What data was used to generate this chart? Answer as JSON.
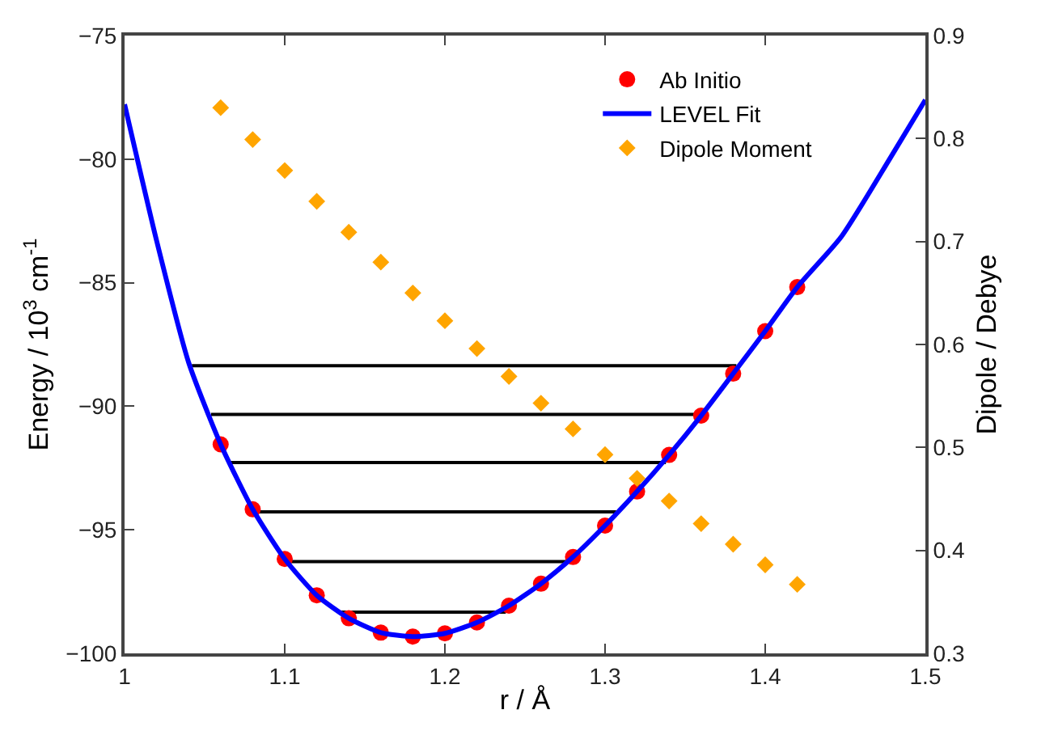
{
  "chart_data": {
    "type": "scatter",
    "xlabel": "r / Å",
    "ylabel": "Energy / 10$^{3}$ cm$^{-1}$",
    "y2label": "Dipole / Debye",
    "xlim": [
      1,
      1.5
    ],
    "xticks": [
      1,
      1.1,
      1.2,
      1.3,
      1.4,
      1.5
    ],
    "ylim": [
      -100,
      -75
    ],
    "yticks": [
      -100,
      -95,
      -90,
      -85,
      -80,
      -75
    ],
    "y2lim": [
      0.3,
      0.9
    ],
    "y2ticks": [
      0.3,
      0.4,
      0.5,
      0.6,
      0.7,
      0.8,
      0.9
    ],
    "legend": "top right",
    "series": [
      {
        "type": "line",
        "color": "#000000",
        "x": [
          1.042,
          1.382
        ],
        "values": [
          -88.36,
          -88.36
        ]
      },
      {
        "type": "line",
        "color": "#000000",
        "x": [
          1.054,
          1.358
        ],
        "values": [
          -90.33,
          -90.33
        ]
      },
      {
        "type": "line",
        "color": "#000000",
        "x": [
          1.065,
          1.338
        ],
        "values": [
          -92.28,
          -92.28
        ]
      },
      {
        "type": "line",
        "color": "#000000",
        "x": [
          1.083,
          1.307
        ],
        "values": [
          -94.27,
          -94.27
        ]
      },
      {
        "type": "line",
        "color": "#000000",
        "x": [
          1.102,
          1.276
        ],
        "values": [
          -96.29,
          -96.29
        ]
      },
      {
        "type": "line",
        "color": "#000000",
        "x": [
          1.134,
          1.238
        ],
        "values": [
          -98.33,
          -98.33
        ]
      },
      {
        "name": "Ab Initio",
        "color": "#ff0000",
        "marker": "circle",
        "x": [
          1.06,
          1.08,
          1.1,
          1.12,
          1.14,
          1.16,
          1.18,
          1.2,
          1.22,
          1.24,
          1.26,
          1.28,
          1.3,
          1.32,
          1.34,
          1.36,
          1.38,
          1.4,
          1.42
        ],
        "values": [
          -91.54,
          -94.17,
          -96.18,
          -97.65,
          -98.58,
          -99.16,
          -99.32,
          -99.19,
          -98.75,
          -98.07,
          -97.18,
          -96.1,
          -94.83,
          -93.45,
          -91.97,
          -90.38,
          -88.68,
          -86.96,
          -85.18
        ]
      },
      {
        "type": "line",
        "name": "LEVEL Fit",
        "color": "#0000ff",
        "marker": "none",
        "x": [
          1.0,
          1.02,
          1.04,
          1.06,
          1.08,
          1.1,
          1.12,
          1.14,
          1.16,
          1.18,
          1.2,
          1.22,
          1.24,
          1.26,
          1.28,
          1.3,
          1.32,
          1.34,
          1.36,
          1.38,
          1.4,
          1.42,
          1.4475,
          1.478,
          1.5
        ],
        "values": [
          -77.78,
          -83.3,
          -88.23,
          -91.54,
          -94.17,
          -96.18,
          -97.65,
          -98.58,
          -99.16,
          -99.32,
          -99.19,
          -98.75,
          -98.07,
          -97.18,
          -96.1,
          -94.83,
          -93.45,
          -91.97,
          -90.38,
          -88.68,
          -86.96,
          -85.18,
          -83.14,
          -79.96,
          -77.6
        ]
      },
      {
        "type": "scatter",
        "name": "Dipole Moment",
        "color": "#ffa500",
        "marker": "diamond",
        "axis": "y2",
        "x": [
          1.06,
          1.08,
          1.1,
          1.12,
          1.14,
          1.16,
          1.18,
          1.2,
          1.22,
          1.24,
          1.26,
          1.28,
          1.3,
          1.32,
          1.34,
          1.36,
          1.38,
          1.4,
          1.42
        ],
        "values": [
          0.83,
          0.799,
          0.769,
          0.739,
          0.709,
          0.68,
          0.65,
          0.623,
          0.596,
          0.569,
          0.543,
          0.518,
          0.493,
          0.47,
          0.448,
          0.426,
          0.406,
          0.386,
          0.367
        ]
      }
    ]
  }
}
